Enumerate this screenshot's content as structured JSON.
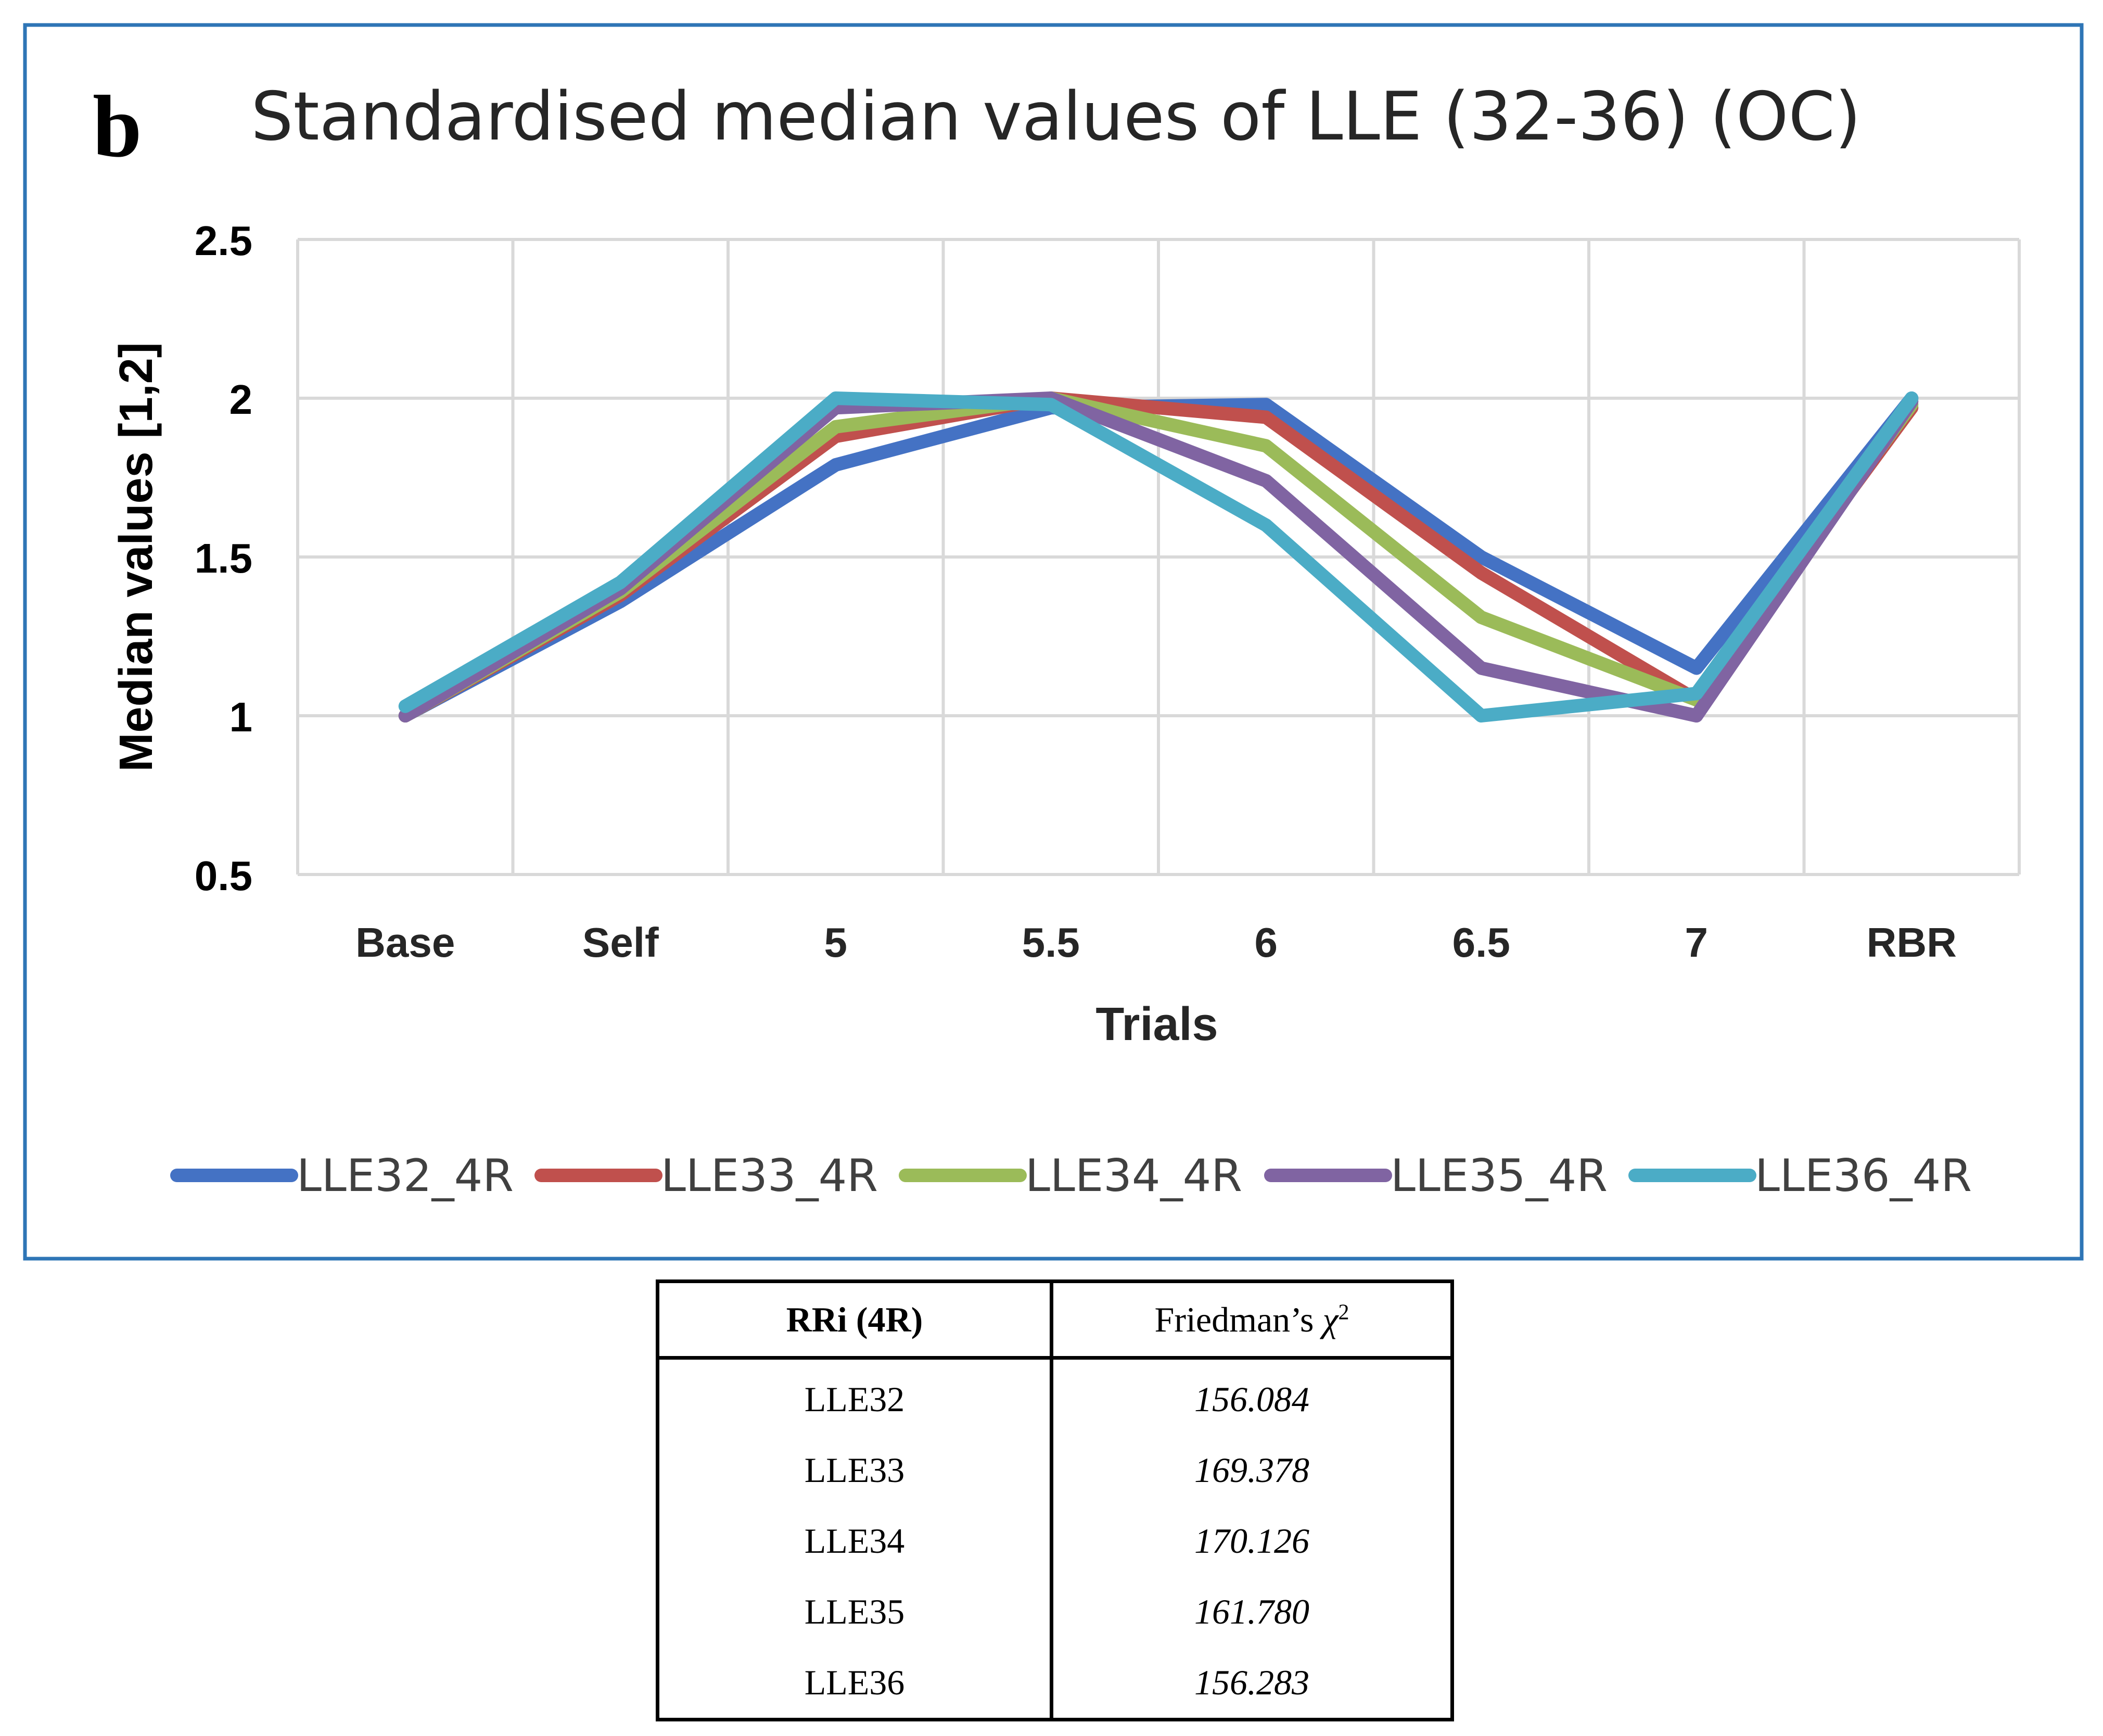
{
  "chart_data": {
    "panel_label": "b",
    "type": "line",
    "title": "Standardised median values of LLE (32-36) (OC)",
    "xlabel": "Trials",
    "ylabel": "Median values [1,2]",
    "categories": [
      "Base",
      "Self",
      "5",
      "5.5",
      "6",
      "6.5",
      "7",
      "RBR"
    ],
    "ylim": [
      0.5,
      2.5
    ],
    "yticks": [
      0.5,
      1,
      1.5,
      2,
      2.5
    ],
    "ytick_labels": [
      "0.5",
      "1",
      "1.5",
      "2",
      "2.5"
    ],
    "grid": true,
    "legend_position": "bottom",
    "series": [
      {
        "name": "LLE32_4R",
        "color": "#4472C4",
        "values": [
          1.0,
          1.36,
          1.79,
          1.97,
          1.98,
          1.5,
          1.15,
          2.0
        ]
      },
      {
        "name": "LLE33_4R",
        "color": "#C0504D",
        "values": [
          1.0,
          1.38,
          1.88,
          2.0,
          1.94,
          1.45,
          1.05,
          1.97
        ]
      },
      {
        "name": "LLE34_4R",
        "color": "#9BBB59",
        "values": [
          1.0,
          1.39,
          1.91,
          2.0,
          1.85,
          1.31,
          1.05,
          1.98
        ]
      },
      {
        "name": "LLE35_4R",
        "color": "#8064A2",
        "values": [
          1.0,
          1.4,
          1.97,
          2.0,
          1.74,
          1.15,
          1.0,
          1.99
        ]
      },
      {
        "name": "LLE36_4R",
        "color": "#4BACC6",
        "values": [
          1.03,
          1.42,
          2.0,
          1.98,
          1.6,
          1.0,
          1.07,
          2.0
        ]
      }
    ]
  },
  "stats_table": {
    "header_left": "RRi (4R)",
    "header_right_prefix": "Friedman’s ",
    "header_right_symbol": "χ",
    "header_right_sup": "2",
    "rows": [
      {
        "label": "LLE32",
        "value": "156.084"
      },
      {
        "label": "LLE33",
        "value": "169.378"
      },
      {
        "label": "LLE34",
        "value": "170.126"
      },
      {
        "label": "LLE35",
        "value": "161.780"
      },
      {
        "label": "LLE36",
        "value": "156.283"
      }
    ]
  }
}
